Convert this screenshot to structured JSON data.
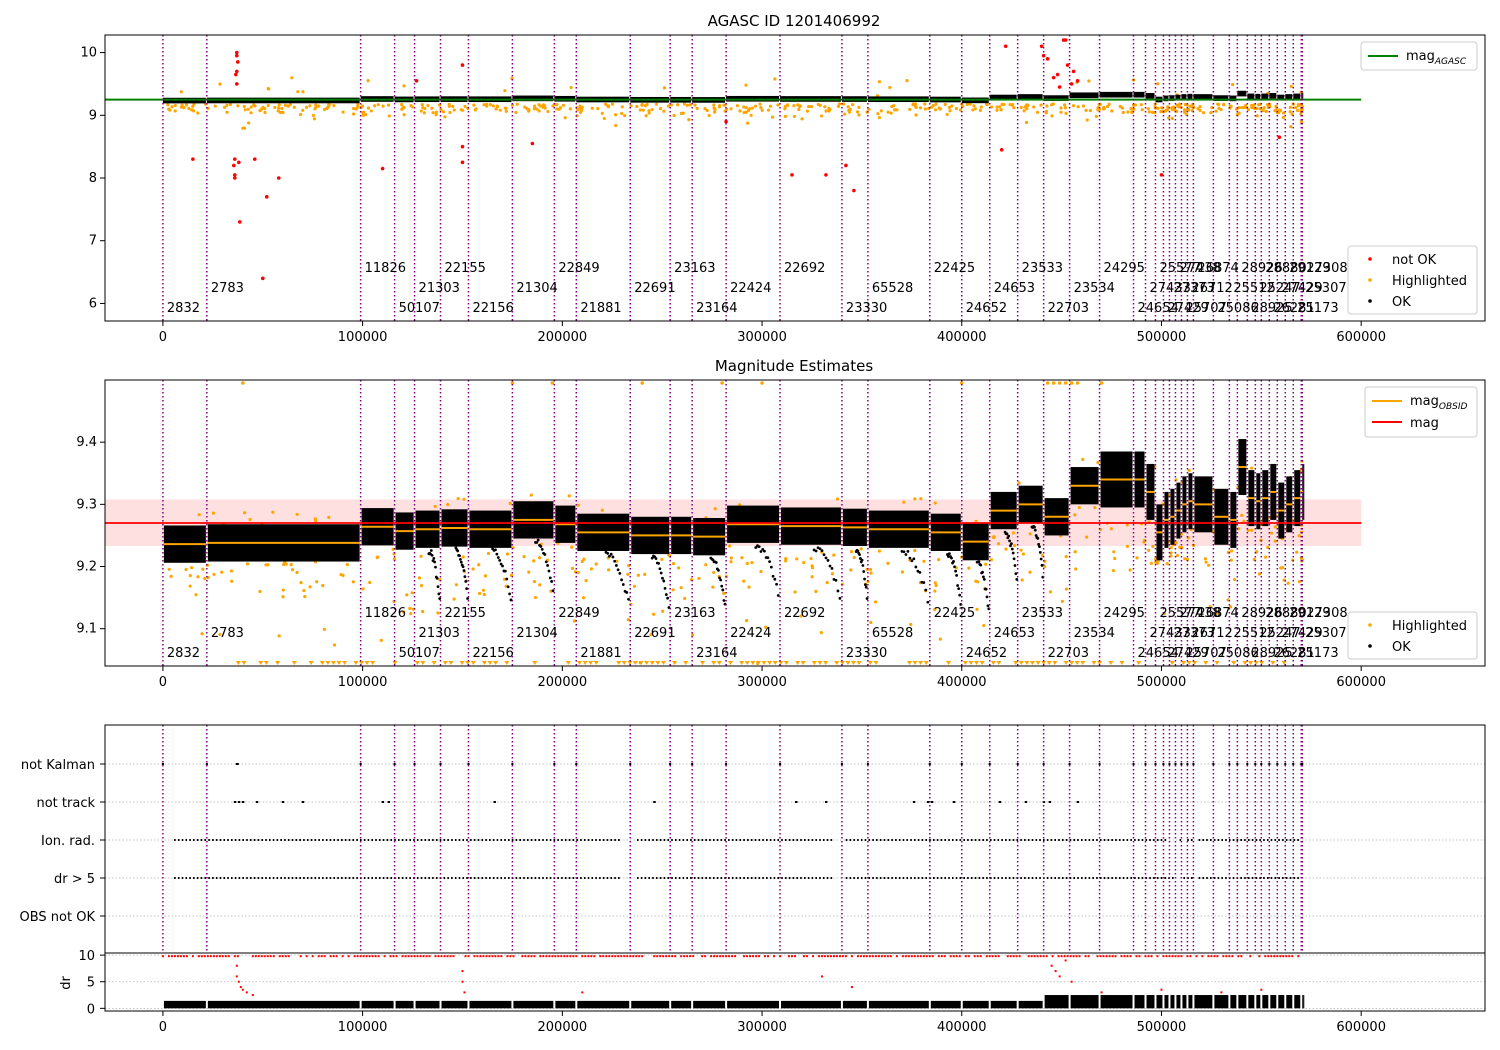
{
  "figure": {
    "colors": {
      "vline": "#800080",
      "ok": "#000000",
      "highlighted": "#ffa500",
      "not_ok": "#ff0000",
      "agasc_line": "#008000",
      "mag_line": "#ff0000",
      "mag_obsid_line": "#ffa500",
      "mag_band": "#ffcccc",
      "grid": "#b0b0b0"
    }
  },
  "chart_data": [
    {
      "type": "scatter",
      "title": "AGASC ID 1201406992",
      "xlim": [
        -29000,
        662000
      ],
      "ylim": [
        5.72,
        10.28
      ],
      "xticks": [
        0,
        100000,
        200000,
        300000,
        400000,
        500000,
        600000
      ],
      "yticks": [
        6,
        7,
        8,
        9,
        10
      ],
      "series": [
        {
          "name": "not OK",
          "color": "#ff0000"
        },
        {
          "name": "Highlighted",
          "color": "#ffa500"
        },
        {
          "name": "OK",
          "color": "#000000"
        }
      ],
      "lines": [
        {
          "name": "mag",
          "subscript": "AGASC",
          "y": 9.25,
          "x": [
            -29000,
            600000
          ],
          "color": "#008000"
        }
      ],
      "legend_upper": "upper-right",
      "legend_lower": "lower-right",
      "ok_band": {
        "description": "dense OK samples following segment means",
        "ymin": 9.2,
        "ymax": 9.4
      }
    },
    {
      "type": "scatter",
      "title": "Magnitude Estimates",
      "xlim": [
        -29000,
        662000
      ],
      "ylim": [
        9.04,
        9.5
      ],
      "xticks": [
        0,
        100000,
        200000,
        300000,
        400000,
        500000,
        600000
      ],
      "yticks": [
        9.1,
        9.2,
        9.3,
        9.4
      ],
      "series": [
        {
          "name": "Highlighted",
          "color": "#ffa500"
        },
        {
          "name": "OK",
          "color": "#000000"
        }
      ],
      "lines": [
        {
          "name": "mag",
          "subscript": "OBSID",
          "color": "#ffa500"
        },
        {
          "name": "mag",
          "y": 9.27,
          "x": [
            -29000,
            600000
          ],
          "color": "#ff0000"
        }
      ],
      "mag_band": [
        9.233,
        9.308
      ],
      "legend_upper": "upper-right",
      "legend_lower": "lower-right"
    },
    {
      "type": "scatter",
      "xlim": [
        -29000,
        662000
      ],
      "flag_rows": [
        "not Kalman",
        "not track",
        "Ion. rad.",
        "dr > 5",
        "OBS not OK"
      ],
      "dr_ylabel": "dr",
      "dr_yticks": [
        0,
        5,
        10
      ],
      "dr_ylim": [
        -0.5,
        10.4
      ],
      "xticks": [
        0,
        100000,
        200000,
        300000,
        400000,
        500000,
        600000
      ]
    }
  ],
  "obsids": [
    {
      "t": 0,
      "label": "2832",
      "row": 2,
      "mean": 9.236
    },
    {
      "t": 22000,
      "label": "2783",
      "row": 1,
      "mean": 9.238
    },
    {
      "t": 99000,
      "label": "11826",
      "row": 0,
      "mean": 9.264
    },
    {
      "t": 116000,
      "label": "50107",
      "row": 2,
      "mean": 9.257
    },
    {
      "t": 126000,
      "label": "21303",
      "row": 1,
      "mean": 9.26
    },
    {
      "t": 139000,
      "label": "22155",
      "row": 0,
      "mean": 9.262
    },
    {
      "t": 153000,
      "label": "22156",
      "row": 2,
      "mean": 9.26
    },
    {
      "t": 175000,
      "label": "21304",
      "row": 1,
      "mean": 9.275
    },
    {
      "t": 196000,
      "label": "22849",
      "row": 0,
      "mean": 9.268
    },
    {
      "t": 207000,
      "label": "21881",
      "row": 2,
      "mean": 9.255
    },
    {
      "t": 234000,
      "label": "22691",
      "row": 1,
      "mean": 9.25
    },
    {
      "t": 254000,
      "label": "23163",
      "row": 0,
      "mean": 9.25
    },
    {
      "t": 265000,
      "label": "23164",
      "row": 2,
      "mean": 9.248
    },
    {
      "t": 282000,
      "label": "22424",
      "row": 1,
      "mean": 9.268
    },
    {
      "t": 309000,
      "label": "22692",
      "row": 0,
      "mean": 9.265
    },
    {
      "t": 340000,
      "label": "23330",
      "row": 2,
      "mean": 9.263
    },
    {
      "t": 353000,
      "label": "65528",
      "row": 1,
      "mean": 9.26
    },
    {
      "t": 384000,
      "label": "22425",
      "row": 0,
      "mean": 9.255
    },
    {
      "t": 400000,
      "label": "24652",
      "row": 2,
      "mean": 9.24
    },
    {
      "t": 414000,
      "label": "24653",
      "row": 1,
      "mean": 9.29
    },
    {
      "t": 428000,
      "label": "23533",
      "row": 0,
      "mean": 9.3
    },
    {
      "t": 441000,
      "label": "22703",
      "row": 2,
      "mean": 9.28
    },
    {
      "t": 454000,
      "label": "23534",
      "row": 1,
      "mean": 9.33
    },
    {
      "t": 469000,
      "label": "24295",
      "row": 0,
      "mean": 9.34
    },
    {
      "t": 486000,
      "label": "24654",
      "row": 2,
      "mean": 9.34
    },
    {
      "t": 492000,
      "label": "27433",
      "row": 1,
      "mean": 9.32
    },
    {
      "t": 497000,
      "label": "25577",
      "row": 0,
      "mean": 9.255
    },
    {
      "t": 501000,
      "label": "27429",
      "row": 2,
      "mean": 9.275
    },
    {
      "t": 504000,
      "label": "27373",
      "row": 1,
      "mean": 9.28
    },
    {
      "t": 507000,
      "label": "27438",
      "row": 0,
      "mean": 9.29
    },
    {
      "t": 510000,
      "label": "25707",
      "row": 2,
      "mean": 9.3
    },
    {
      "t": 513000,
      "label": "26712",
      "row": 1,
      "mean": 9.305
    },
    {
      "t": 516000,
      "label": "26874",
      "row": 0,
      "mean": 9.3
    },
    {
      "t": 526000,
      "label": "25086",
      "row": 2,
      "mean": 9.28
    },
    {
      "t": 534000,
      "label": "25512",
      "row": 1,
      "mean": 9.275
    },
    {
      "t": 538000,
      "label": "28926",
      "row": 0,
      "mean": 9.36
    },
    {
      "t": 543000,
      "label": "28925",
      "row": 2,
      "mean": 9.31
    },
    {
      "t": 547000,
      "label": "25247",
      "row": 1,
      "mean": 9.305
    },
    {
      "t": 550000,
      "label": "28880",
      "row": 0,
      "mean": 9.31
    },
    {
      "t": 554000,
      "label": "26281",
      "row": 2,
      "mean": 9.32
    },
    {
      "t": 558000,
      "label": "27429",
      "row": 1,
      "mean": 9.29
    },
    {
      "t": 562000,
      "label": "29129",
      "row": 0,
      "mean": 9.3
    },
    {
      "t": 566000,
      "label": "25173",
      "row": 2,
      "mean": 9.31
    },
    {
      "t": 570000,
      "label": "25307",
      "row": 1,
      "mean": 9.32
    },
    {
      "t": 570500,
      "label": "27308",
      "row": 0,
      "mean": 9.32
    }
  ]
}
